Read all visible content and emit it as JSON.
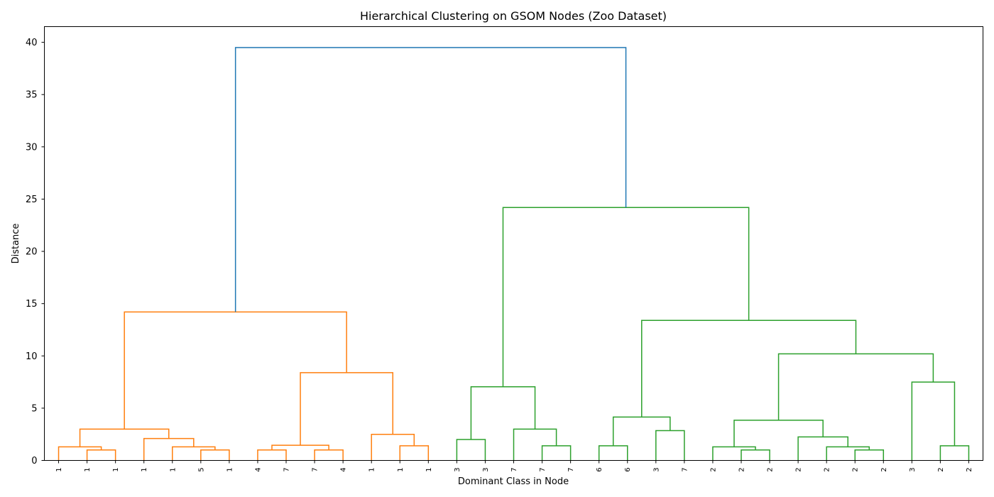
{
  "chart_data": {
    "type": "dendrogram",
    "title": "Hierarchical Clustering on GSOM Nodes (Zoo Dataset)",
    "xlabel": "Dominant Class in Node",
    "ylabel": "Distance",
    "ylim": [
      0,
      41.5
    ],
    "yticks": [
      0,
      5,
      10,
      15,
      20,
      25,
      30,
      35,
      40
    ],
    "grid": false,
    "leaf_labels": [
      "1",
      "1",
      "1",
      "1",
      "1",
      "5",
      "1",
      "4",
      "7",
      "7",
      "4",
      "1",
      "1",
      "1",
      "3",
      "3",
      "7",
      "7",
      "7",
      "6",
      "6",
      "3",
      "7",
      "2",
      "2",
      "2",
      "2",
      "2",
      "2",
      "2",
      "3",
      "2",
      "2"
    ],
    "colors": {
      "cluster_1": "#ff7f0e",
      "cluster_2": "#2ca02c",
      "above_threshold": "#1f77b4"
    },
    "merges": [
      {
        "left": 1,
        "right": 2,
        "height": 1.0,
        "color": "cluster_1"
      },
      {
        "left": 0,
        "right": "m0",
        "height": 1.3,
        "color": "cluster_1"
      },
      {
        "left": 5,
        "right": 6,
        "height": 1.0,
        "color": "cluster_1"
      },
      {
        "left": 4,
        "right": "m2",
        "height": 1.3,
        "color": "cluster_1"
      },
      {
        "left": 3,
        "right": "m3",
        "height": 2.1,
        "color": "cluster_1"
      },
      {
        "left": "m1",
        "right": "m4",
        "height": 3.0,
        "color": "cluster_1"
      },
      {
        "left": 7,
        "right": 8,
        "height": 1.0,
        "color": "cluster_1"
      },
      {
        "left": 9,
        "right": 10,
        "height": 1.0,
        "color": "cluster_1"
      },
      {
        "left": "m6",
        "right": "m7",
        "height": 1.45,
        "color": "cluster_1"
      },
      {
        "left": 12,
        "right": 13,
        "height": 1.4,
        "color": "cluster_1"
      },
      {
        "left": 11,
        "right": "m9",
        "height": 2.5,
        "color": "cluster_1"
      },
      {
        "left": "m8",
        "right": "m10",
        "height": 8.4,
        "color": "cluster_1"
      },
      {
        "left": "m5",
        "right": "m11",
        "height": 14.2,
        "color": "cluster_1"
      },
      {
        "left": 14,
        "right": 15,
        "height": 2.0,
        "color": "cluster_2"
      },
      {
        "left": 17,
        "right": 18,
        "height": 1.4,
        "color": "cluster_2"
      },
      {
        "left": 16,
        "right": "m14",
        "height": 3.0,
        "color": "cluster_2"
      },
      {
        "left": "m13",
        "right": "m15",
        "height": 7.05,
        "color": "cluster_2"
      },
      {
        "left": 19,
        "right": 20,
        "height": 1.4,
        "color": "cluster_2"
      },
      {
        "left": 21,
        "right": 22,
        "height": 2.85,
        "color": "cluster_2"
      },
      {
        "left": "m17",
        "right": "m18",
        "height": 4.15,
        "color": "cluster_2"
      },
      {
        "left": 24,
        "right": 25,
        "height": 1.0,
        "color": "cluster_2"
      },
      {
        "left": 23,
        "right": "m20",
        "height": 1.3,
        "color": "cluster_2"
      },
      {
        "left": 28,
        "right": 29,
        "height": 1.0,
        "color": "cluster_2"
      },
      {
        "left": 27,
        "right": "m22",
        "height": 1.3,
        "color": "cluster_2"
      },
      {
        "left": 26,
        "right": "m23",
        "height": 2.25,
        "color": "cluster_2"
      },
      {
        "left": "m21",
        "right": "m24",
        "height": 3.85,
        "color": "cluster_2"
      },
      {
        "left": 31,
        "right": 32,
        "height": 1.4,
        "color": "cluster_2"
      },
      {
        "left": 30,
        "right": "m26",
        "height": 7.5,
        "color": "cluster_2"
      },
      {
        "left": "m25",
        "right": "m27",
        "height": 10.2,
        "color": "cluster_2"
      },
      {
        "left": "m19",
        "right": "m28",
        "height": 13.4,
        "color": "cluster_2"
      },
      {
        "left": "m16",
        "right": "m29",
        "height": 24.2,
        "color": "cluster_2"
      },
      {
        "left": "m12",
        "right": "m30",
        "height": 39.5,
        "color": "above_threshold"
      }
    ]
  }
}
